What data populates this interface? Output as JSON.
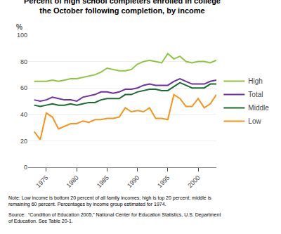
{
  "chart_data": {
    "type": "line",
    "title": "Percent of high school completers enrolled in college\nthe October following completion, by income",
    "ylabel": "%",
    "annotations": [
      "Note: Low income is bottom 20 percent of all family incomes; high is top 20 percent; middle is\nremaining 60 percent. Percentages by income group estimated for 1974.",
      "Source:  “Condition of Education 2005,” National Center for Education Statistics, U.S. Department\nof Education. See Table 20-1."
    ],
    "x": [
      1973,
      1974,
      1975,
      1976,
      1977,
      1978,
      1979,
      1980,
      1981,
      1982,
      1983,
      1984,
      1985,
      1986,
      1987,
      1988,
      1989,
      1990,
      1991,
      1992,
      1993,
      1994,
      1995,
      1996,
      1997,
      1998,
      1999,
      2000,
      2001,
      2002,
      2003
    ],
    "series": [
      {
        "name": "High",
        "color": "#8dc63f",
        "values": [
          65,
          65,
          65,
          66,
          65,
          66,
          67,
          67,
          68,
          69,
          70,
          72,
          75,
          74,
          73,
          73,
          74,
          78,
          80,
          81,
          80,
          79,
          86,
          82,
          84,
          80,
          79,
          80,
          80,
          79,
          81
        ]
      },
      {
        "name": "Total",
        "color": "#7030a0",
        "values": [
          51,
          50,
          51,
          53,
          52,
          51,
          51,
          50,
          53,
          54,
          55,
          57,
          57,
          56,
          57,
          59,
          59,
          60,
          62,
          63,
          62,
          62,
          62,
          65,
          67,
          65,
          63,
          63,
          63,
          65,
          66
        ]
      },
      {
        "name": "Middle",
        "color": "#1a6b30",
        "values": [
          47,
          46,
          47,
          48,
          47,
          47,
          48,
          47,
          48,
          49,
          49,
          51,
          52,
          52,
          52,
          55,
          55,
          57,
          58,
          59,
          59,
          58,
          58,
          61,
          64,
          62,
          60,
          60,
          60,
          63,
          63
        ]
      },
      {
        "name": "Low",
        "color": "#f7941d",
        "values": [
          27,
          21,
          41,
          38,
          29,
          31,
          33,
          33,
          35,
          34,
          36,
          36,
          37,
          37,
          38,
          45,
          42,
          43,
          42,
          45,
          37,
          37,
          36,
          55,
          52,
          46,
          46,
          52,
          45,
          48,
          55
        ]
      }
    ],
    "xlim": [
      1972,
      2003
    ],
    "xticks": [
      1975,
      1980,
      1985,
      1990,
      1995,
      2000
    ],
    "ylim": [
      0,
      100
    ],
    "yticks": [
      0,
      20,
      40,
      60,
      80,
      100
    ],
    "grid": true,
    "legend": "right"
  }
}
